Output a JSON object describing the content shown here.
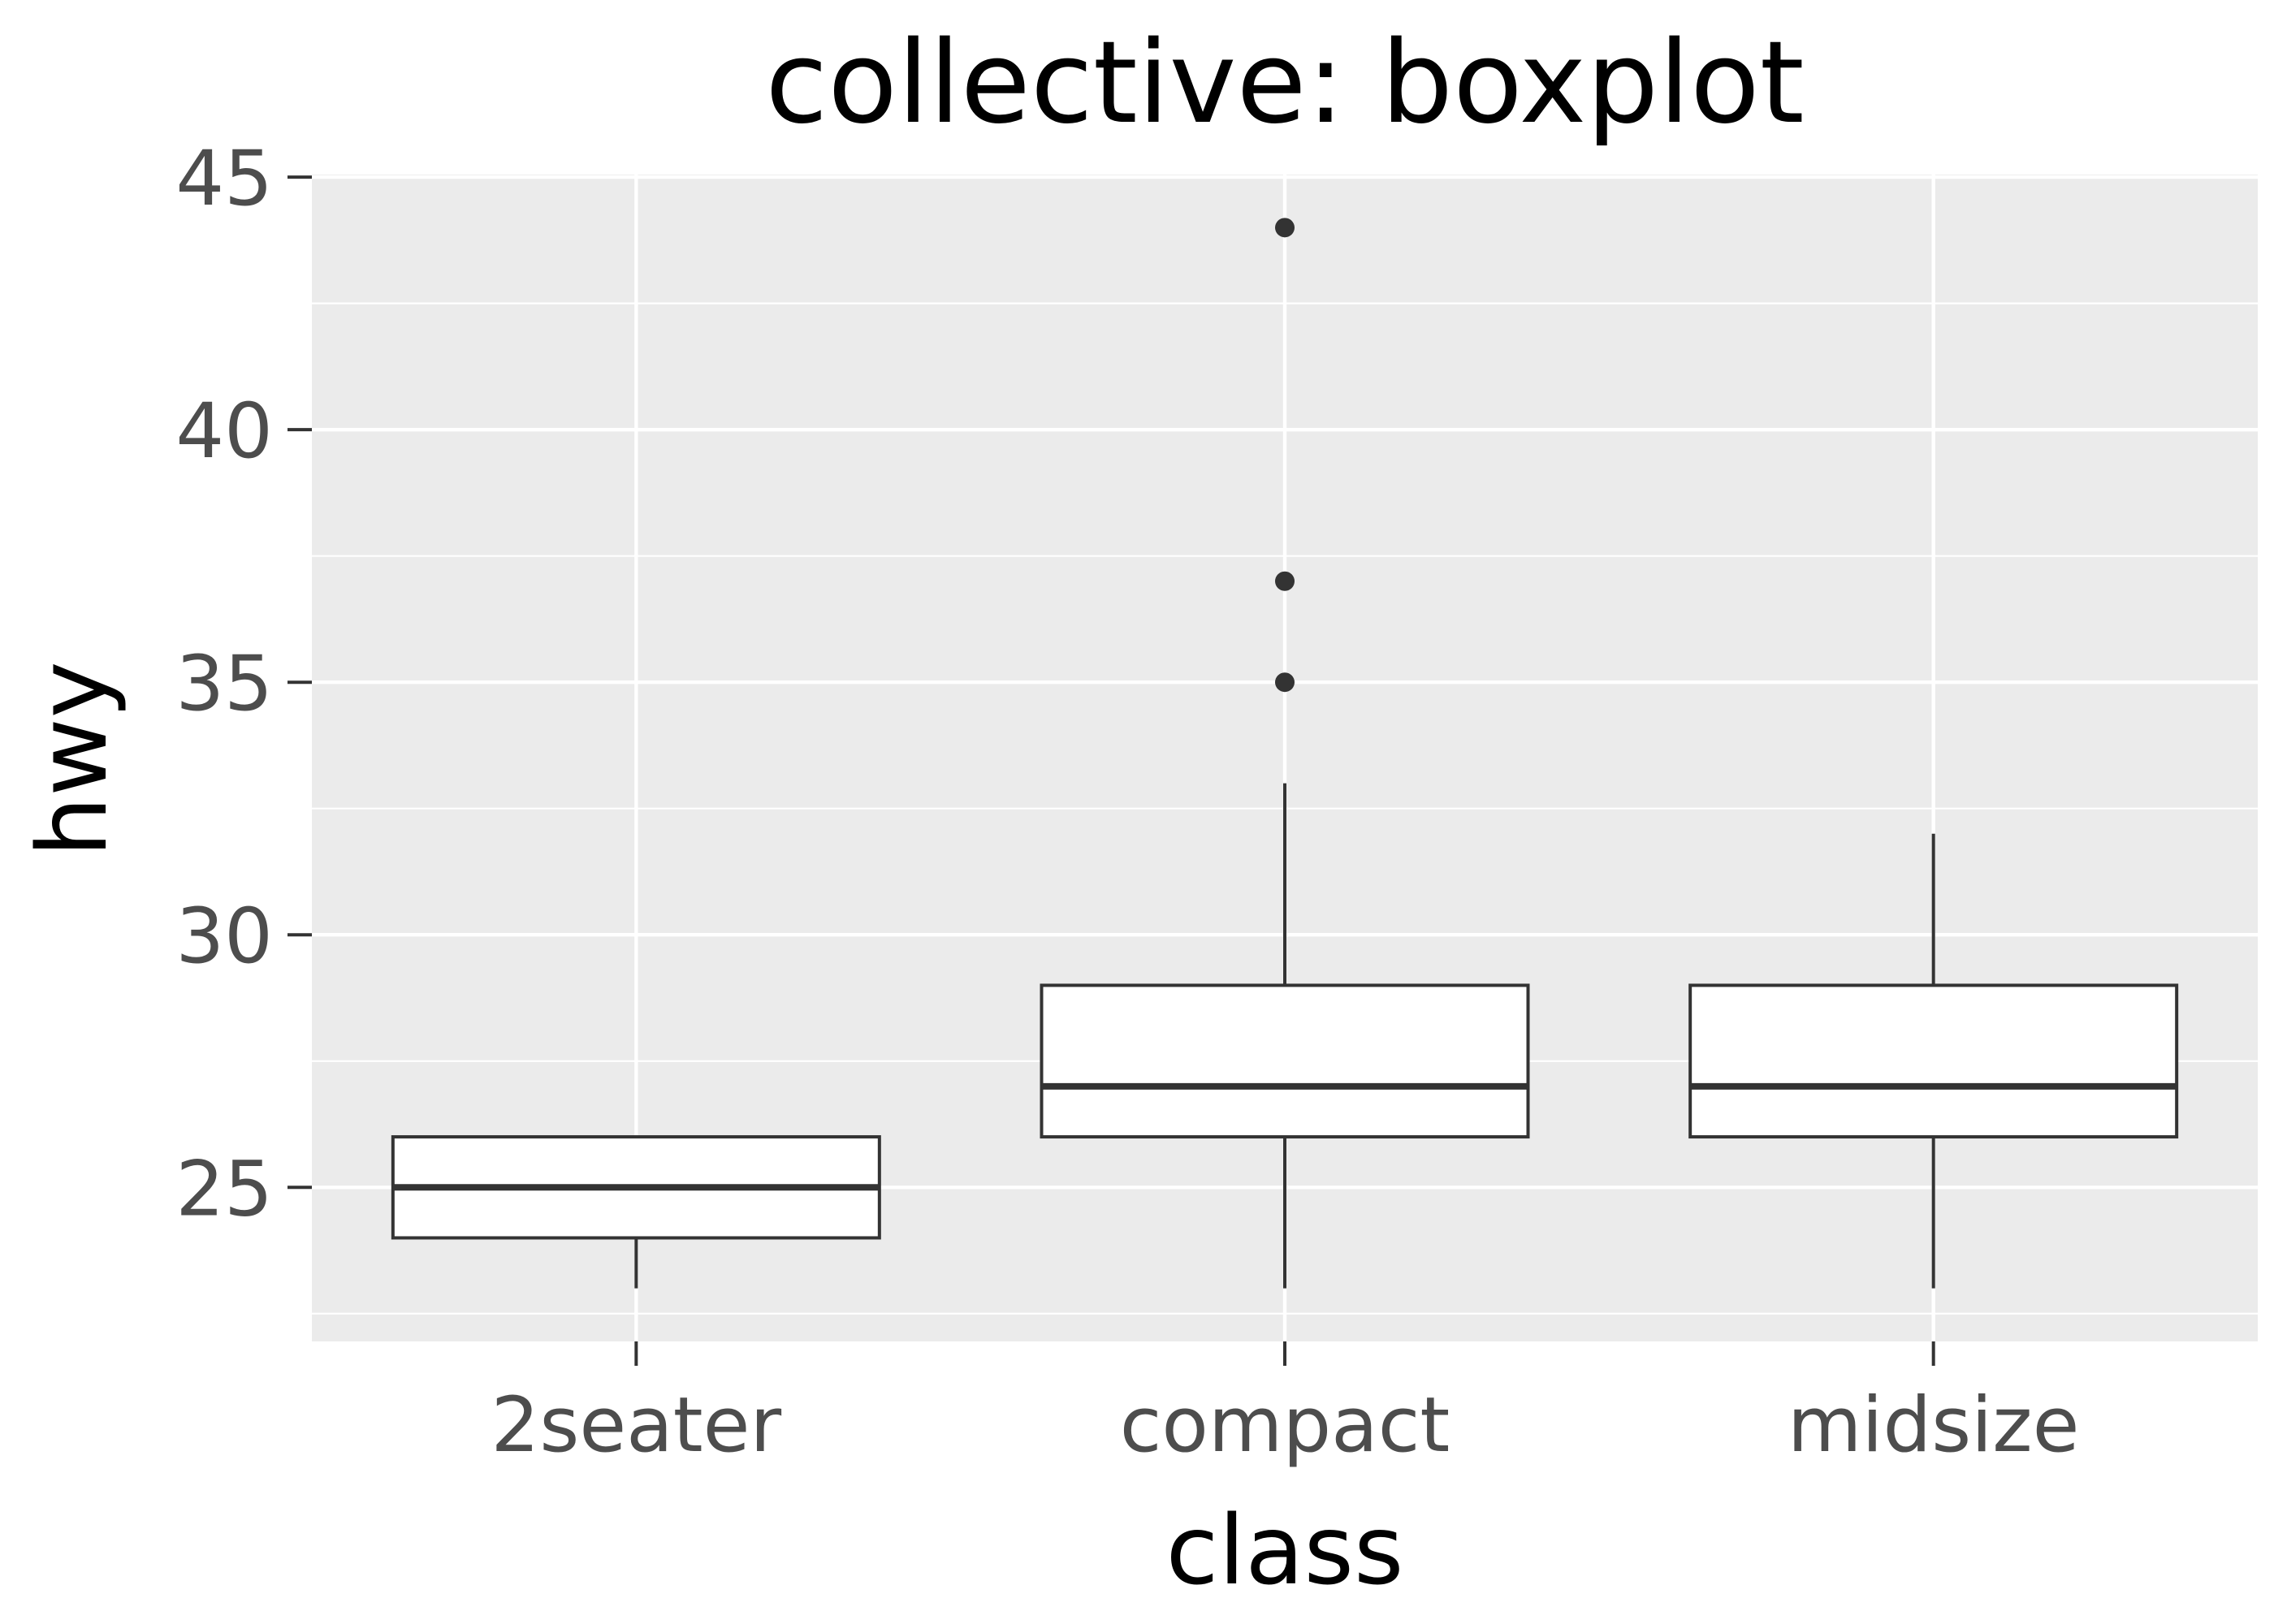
{
  "chart_data": {
    "type": "boxplot",
    "title": "collective: boxplot",
    "xlabel": "class",
    "ylabel": "hwy",
    "categories": [
      "2seater",
      "compact",
      "midsize"
    ],
    "boxes": [
      {
        "category": "2seater",
        "whisker_low": 23,
        "q1": 24,
        "median": 25,
        "q3": 26,
        "whisker_high": 26,
        "outliers": []
      },
      {
        "category": "compact",
        "whisker_low": 23,
        "q1": 26,
        "median": 27,
        "q3": 29,
        "whisker_high": 33,
        "outliers": [
          35,
          37,
          44
        ]
      },
      {
        "category": "midsize",
        "whisker_low": 23,
        "q1": 26,
        "median": 27,
        "q3": 29,
        "whisker_high": 32,
        "outliers": []
      }
    ],
    "yticks": [
      25,
      30,
      35,
      40,
      45
    ],
    "ylim": [
      21.95,
      45.05
    ],
    "grid": true,
    "legend": "none",
    "colors": {
      "panel_background": "#ebebeb",
      "grid_major": "#ffffff",
      "grid_minor": "#ffffff",
      "box_fill": "#ffffff",
      "box_line": "#333333",
      "outlier": "#333333",
      "tick_label": "#4d4d4d",
      "tick_mark": "#333333"
    }
  }
}
